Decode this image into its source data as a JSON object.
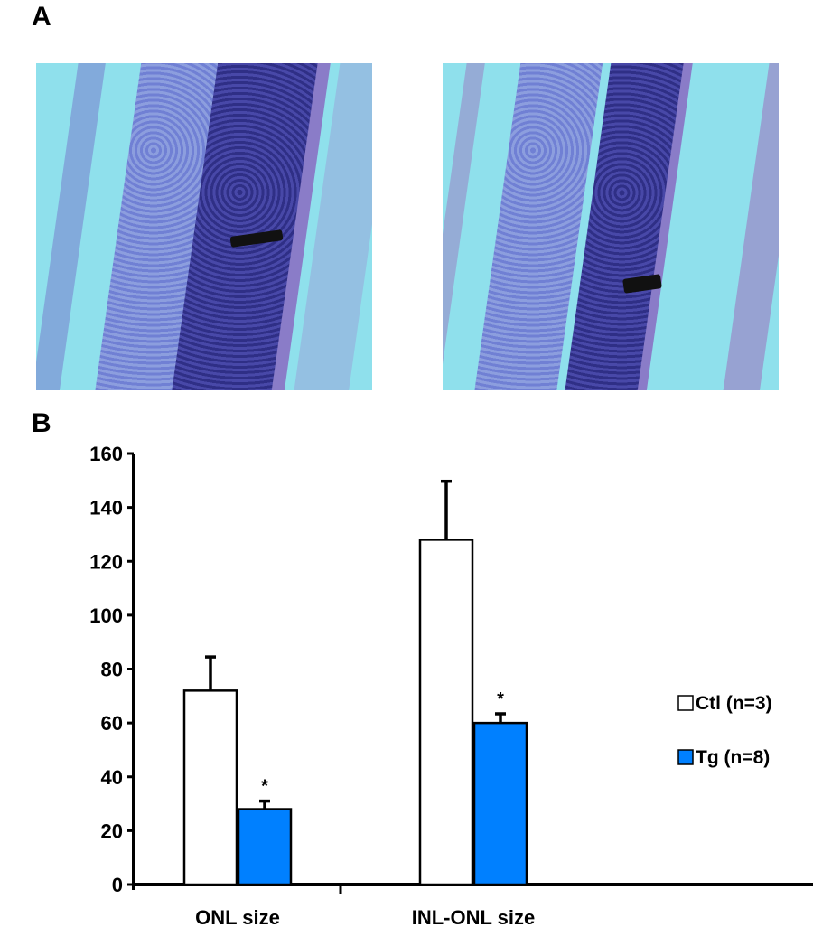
{
  "panels": {
    "a_label": "A",
    "b_label": "B"
  },
  "micrographs": [
    {
      "name": "Ctl retina section"
    },
    {
      "name": "Tg retina section"
    }
  ],
  "colors": {
    "ctl": "#ffffff",
    "tg": "#0080ff",
    "stain": "#5a5ac8",
    "background": "#8fe0ec"
  },
  "chart_data": {
    "type": "bar",
    "title": "",
    "xlabel": "",
    "ylabel": "",
    "categories": [
      "ONL size",
      "INL-ONL size"
    ],
    "ylim": [
      0,
      160
    ],
    "yticks": [
      "0",
      "20",
      "40",
      "60",
      "80",
      "100",
      "120",
      "140",
      "160"
    ],
    "series": [
      {
        "name": "Ctl (n=3)",
        "color": "#ffffff",
        "values": [
          72,
          128
        ],
        "errors": [
          12.5,
          21.7
        ],
        "significance": [
          "",
          ""
        ]
      },
      {
        "name": "Tg (n=8)",
        "color": "#0080ff",
        "values": [
          28,
          60
        ],
        "errors": [
          3,
          3.4
        ],
        "significance": [
          "*",
          "*"
        ]
      }
    ],
    "legend": "right",
    "grid": false
  }
}
